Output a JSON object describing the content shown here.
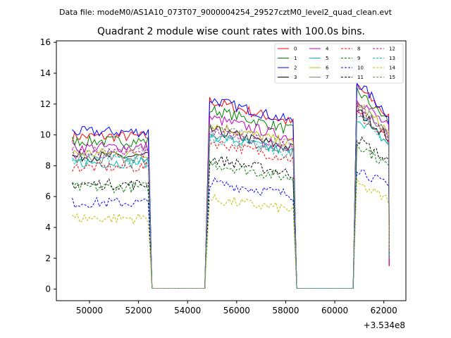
{
  "suptitle": "Data file: modeM0/AS1A10_073T07_9000004254_29527cztM0_level2_quad_clean.evt",
  "chart_data": {
    "type": "line",
    "title": "Quadrant 2 module wise count rates with 100.0s bins.",
    "xlabel": "",
    "ylabel": "",
    "offset_label": "+3.534e8",
    "xlim": [
      48650,
      62900
    ],
    "ylim": [
      -0.75,
      16.1
    ],
    "xticks": [
      50000,
      52000,
      54000,
      56000,
      58000,
      60000,
      62000
    ],
    "xtick_labels": [
      "50000",
      "52000",
      "54000",
      "56000",
      "58000",
      "60000",
      "62000"
    ],
    "yticks": [
      0,
      2,
      4,
      6,
      8,
      10,
      12,
      14,
      16
    ],
    "ytick_labels": [
      "0",
      "2",
      "4",
      "6",
      "8",
      "10",
      "12",
      "14",
      "16"
    ],
    "grid": false,
    "legend_position": "top-right",
    "segments": [
      {
        "start": 49300,
        "end": 52400
      },
      {
        "start": 54900,
        "end": 58300
      },
      {
        "start": 60900,
        "end": 62200
      }
    ],
    "gap_after": [
      52550,
      54700,
      58450,
      60750
    ],
    "series": [
      {
        "name": "0",
        "color": "#ff0000",
        "dash": false,
        "levels": [
          9.9,
          11.1,
          11.6
        ]
      },
      {
        "name": "1",
        "color": "#008000",
        "dash": false,
        "levels": [
          9.6,
          10.6,
          11.3
        ]
      },
      {
        "name": "2",
        "color": "#0000ff",
        "dash": false,
        "levels": [
          10.2,
          11.2,
          11.8
        ]
      },
      {
        "name": "3",
        "color": "#000000",
        "dash": false,
        "levels": [
          8.6,
          9.4,
          10.2
        ]
      },
      {
        "name": "4",
        "color": "#bf00bf",
        "dash": false,
        "levels": [
          9.2,
          10.1,
          10.9
        ]
      },
      {
        "name": "5",
        "color": "#00bfbf",
        "dash": false,
        "levels": [
          8.2,
          9.1,
          9.8
        ]
      },
      {
        "name": "6",
        "color": "#bfbf00",
        "dash": false,
        "levels": [
          8.8,
          9.7,
          10.6
        ]
      },
      {
        "name": "7",
        "color": "#808080",
        "dash": false,
        "levels": [
          8.5,
          9.2,
          10.4
        ]
      },
      {
        "name": "8",
        "color": "#ff0000",
        "dash": true,
        "levels": [
          7.9,
          8.7,
          10.0
        ]
      },
      {
        "name": "9",
        "color": "#008000",
        "dash": true,
        "levels": [
          6.6,
          7.4,
          8.3
        ]
      },
      {
        "name": "10",
        "color": "#0000ff",
        "dash": true,
        "levels": [
          5.6,
          6.3,
          6.9
        ]
      },
      {
        "name": "11",
        "color": "#000000",
        "dash": true,
        "levels": [
          6.8,
          7.7,
          8.6
        ]
      },
      {
        "name": "12",
        "color": "#bf00bf",
        "dash": true,
        "levels": [
          8.8,
          9.4,
          10.3
        ]
      },
      {
        "name": "13",
        "color": "#00bfbf",
        "dash": true,
        "levels": [
          8.4,
          9.0,
          9.9
        ]
      },
      {
        "name": "14",
        "color": "#bfbf00",
        "dash": true,
        "levels": [
          4.6,
          5.3,
          6.0
        ]
      },
      {
        "name": "15",
        "color": "#808080",
        "dash": true,
        "levels": [
          9.0,
          9.6,
          10.6
        ]
      }
    ]
  }
}
